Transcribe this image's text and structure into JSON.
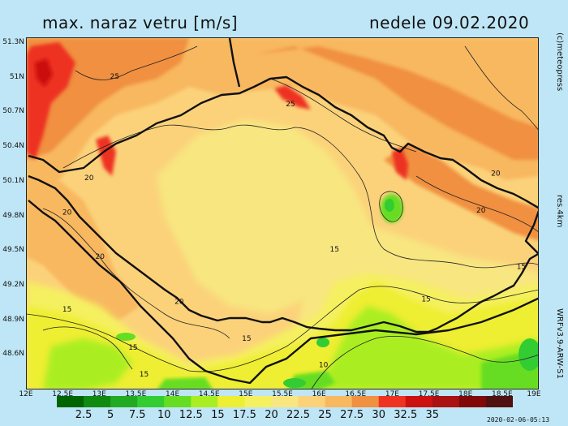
{
  "title": "max. naraz vetru [m/s]",
  "date": "nedele 09.02.2020",
  "credit": "(c)meteopress",
  "resolution": "res.4km",
  "model": "WRFv3.9-ARW-S1",
  "timestamp": "2020-02-06-05:13",
  "axes": {
    "y_ticks": [
      "51.3N",
      "51N",
      "50.7N",
      "50.4N",
      "50.1N",
      "49.8N",
      "49.5N",
      "49.2N",
      "48.9N",
      "48.6N"
    ],
    "x_ticks": [
      "12E",
      "12.5E",
      "13E",
      "13.5E",
      "14E",
      "14.5E",
      "15E",
      "15.5E",
      "16E",
      "16.5E",
      "17E",
      "17.5E",
      "18E",
      "18.5E",
      "19E"
    ]
  },
  "colorbar": {
    "colors": [
      "#006400",
      "#118a11",
      "#22aa22",
      "#33cc33",
      "#66dd22",
      "#aaee22",
      "#eeee33",
      "#f5f060",
      "#f8e680",
      "#fbd27a",
      "#f8b860",
      "#f09040",
      "#ee3322",
      "#cc1111",
      "#aa1111",
      "#800808",
      "#501010"
    ],
    "labels": [
      "2.5",
      "5",
      "7.5",
      "10",
      "12.5",
      "15",
      "17.5",
      "20",
      "22.5",
      "25",
      "27.5",
      "30",
      "32.5",
      "35"
    ]
  },
  "contour_labels": [
    {
      "value": "25",
      "lon": 13.2,
      "lat": 51.0
    },
    {
      "value": "25",
      "lon": 15.6,
      "lat": 50.76
    },
    {
      "value": "20",
      "lon": 12.85,
      "lat": 50.12
    },
    {
      "value": "20",
      "lon": 12.55,
      "lat": 49.82
    },
    {
      "value": "20",
      "lon": 13.0,
      "lat": 49.44
    },
    {
      "value": "20",
      "lon": 14.08,
      "lat": 49.05
    },
    {
      "value": "20",
      "lon": 18.4,
      "lat": 50.16
    },
    {
      "value": "20",
      "lon": 18.2,
      "lat": 49.84
    },
    {
      "value": "15",
      "lon": 16.2,
      "lat": 49.5
    },
    {
      "value": "15",
      "lon": 12.55,
      "lat": 48.98
    },
    {
      "value": "15",
      "lon": 13.45,
      "lat": 48.65
    },
    {
      "value": "15",
      "lon": 15.0,
      "lat": 48.73
    },
    {
      "value": "15",
      "lon": 17.45,
      "lat": 49.07
    },
    {
      "value": "15",
      "lon": 18.75,
      "lat": 49.35
    },
    {
      "value": "10",
      "lon": 16.05,
      "lat": 48.5
    },
    {
      "value": "15",
      "lon": 13.6,
      "lat": 48.42
    }
  ]
}
